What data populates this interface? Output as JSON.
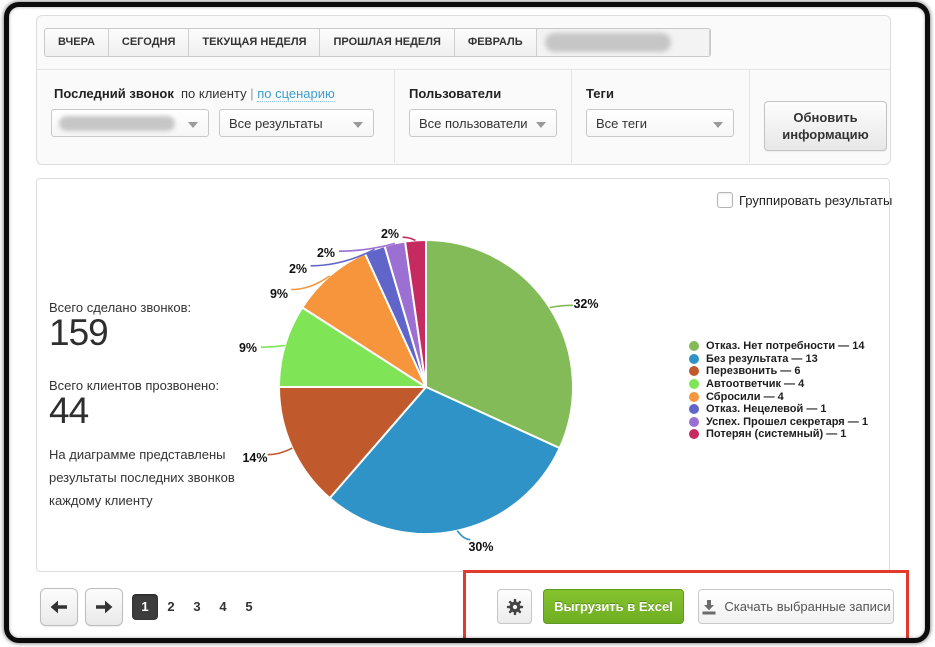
{
  "tabs_bar": {
    "items": [
      "ВЧЕРА",
      "СЕГОДНЯ",
      "ТЕКУЩАЯ НЕДЕЛЯ",
      "ПРОШЛАЯ НЕДЕЛЯ",
      "ФЕВРАЛЬ"
    ],
    "has_redacted_item": true
  },
  "filters": {
    "last_call": {
      "title": "Последний звонок",
      "mode_client": "по клиенту",
      "mode_separator": "|",
      "mode_scenario": "по сценарию",
      "select_scenario_redacted": true,
      "select_results_value": "Все результаты"
    },
    "users": {
      "title": "Пользователи",
      "select_value": "Все пользователи"
    },
    "tags": {
      "title": "Теги",
      "select_value": "Все теги"
    },
    "refresh_button_label": "Обновить информацию"
  },
  "panel": {
    "group_checkbox_label": "Группировать результаты",
    "group_checkbox_checked": false,
    "stats": {
      "calls_label": "Всего сделано звонков:",
      "calls_value": "159",
      "clients_label": "Всего клиентов прозвонено:",
      "clients_value": "44",
      "description": "На диаграмме представлены результаты последних звонков каждому клиенту"
    }
  },
  "chart_data": {
    "type": "pie",
    "title": "",
    "total": 44,
    "direction": "clockwise",
    "start_angle_deg": 0,
    "legend_position": "right",
    "legend_separator": "—",
    "slices": [
      {
        "label": "Отказ. Нет потребности",
        "value": 14,
        "pct": "32%",
        "color": "#84bb59"
      },
      {
        "label": "Без результата",
        "value": 13,
        "pct": "30%",
        "color": "#3093c7"
      },
      {
        "label": "Перезвонить",
        "value": 6,
        "pct": "14%",
        "color": "#c05a2c"
      },
      {
        "label": "Автоответчик",
        "value": 4,
        "pct": "9%",
        "color": "#7fe556"
      },
      {
        "label": "Сбросили",
        "value": 4,
        "pct": "9%",
        "color": "#f6953c"
      },
      {
        "label": "Отказ. Нецелевой",
        "value": 1,
        "pct": "2%",
        "color": "#6066c9"
      },
      {
        "label": "Успех. Прошел секретаря",
        "value": 1,
        "pct": "2%",
        "color": "#9c6fd2"
      },
      {
        "label": "Потерян (системный)",
        "value": 1,
        "pct": "2%",
        "color": "#c52b60"
      }
    ]
  },
  "pagination": {
    "pages": [
      "1",
      "2",
      "3",
      "4",
      "5"
    ],
    "current": "1"
  },
  "footer": {
    "excel_button_label": "Выгрузить в Excel",
    "download_button_label": "Скачать выбранные записи"
  },
  "colors": {
    "excel_green": "#76b629",
    "annotation_red": "#e23b2b",
    "link_blue": "#3d9dce"
  }
}
